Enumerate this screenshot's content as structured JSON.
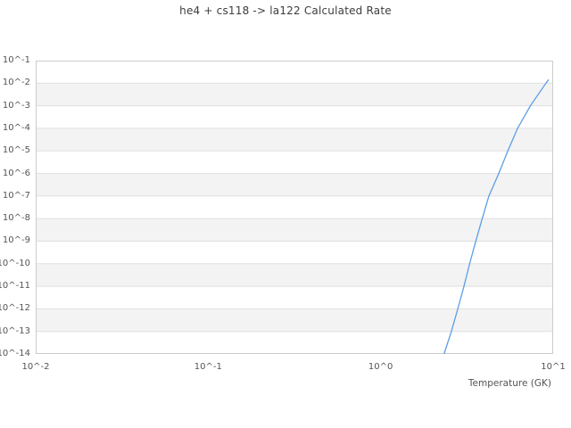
{
  "chart_data": {
    "type": "line",
    "title": "he4 + cs118 -> la122 Calculated Rate",
    "xlabel": "Temperature (GK)",
    "ylabel": "",
    "x_scale": "log",
    "y_scale": "log",
    "xlim": [
      0.01,
      10
    ],
    "ylim": [
      1e-14,
      0.1
    ],
    "x_tick_labels": [
      "10^-2",
      "10^-1",
      "10^0",
      "10^1"
    ],
    "x_tick_values": [
      0.01,
      0.1,
      1,
      10
    ],
    "y_tick_labels": [
      "10^-1",
      "10^-2",
      "10^-3",
      "10^-4",
      "10^-5",
      "10^-6",
      "10^-7",
      "10^-8",
      "10^-9",
      "10^-10",
      "10^-11",
      "10^-12",
      "10^-13",
      "10^-14"
    ],
    "y_tick_values": [
      0.1,
      0.01,
      0.001,
      0.0001,
      1e-05,
      1e-06,
      1e-07,
      1e-08,
      1e-09,
      1e-10,
      1e-11,
      1e-12,
      1e-13,
      1e-14
    ],
    "grid": {
      "horizontal_gridlines": true,
      "vertical_gridlines": false,
      "alternating_bands": true,
      "band_color": "#f3f3f3",
      "gridline_color": "#e0e0e0",
      "border_color": "#cccccc"
    },
    "legend": null,
    "series": [
      {
        "name": "calculated-rate",
        "color": "#5b9ee5",
        "line_width": 1.3,
        "points": [
          [
            2.33,
            1e-14
          ],
          [
            2.57,
            1e-13
          ],
          [
            2.8,
            1e-12
          ],
          [
            3.04,
            1e-11
          ],
          [
            3.28,
            1e-10
          ],
          [
            3.56,
            1e-09
          ],
          [
            3.88,
            1e-08
          ],
          [
            4.24,
            1e-07
          ],
          [
            4.84,
            1e-06
          ],
          [
            5.46,
            1e-05
          ],
          [
            6.22,
            0.0001
          ],
          [
            7.38,
            0.001
          ],
          [
            9.08,
            0.01
          ],
          [
            9.38,
            0.014
          ]
        ]
      }
    ]
  }
}
